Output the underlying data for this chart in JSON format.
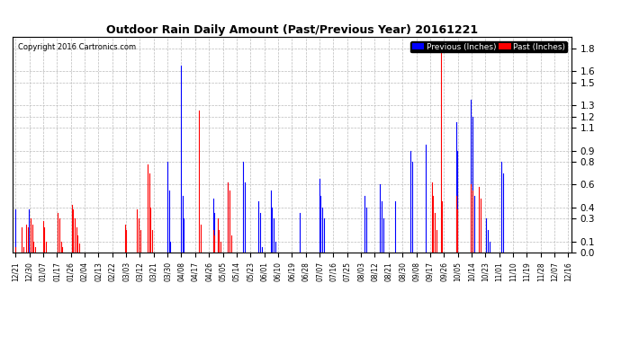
{
  "title": "Outdoor Rain Daily Amount (Past/Previous Year) 20161221",
  "copyright": "Copyright 2016 Cartronics.com",
  "legend_prev": "Previous (Inches)",
  "legend_past": "Past (Inches)",
  "prev_color": "#0000FF",
  "past_color": "#FF0000",
  "background_color": "#FFFFFF",
  "grid_color": "#BBBBBB",
  "yticks": [
    0.0,
    0.1,
    0.3,
    0.4,
    0.6,
    0.8,
    0.9,
    1.1,
    1.2,
    1.3,
    1.5,
    1.6,
    1.8
  ],
  "ylim": [
    0.0,
    1.9
  ],
  "xtick_labels": [
    "12/21",
    "12/30",
    "01/07",
    "01/17",
    "01/26",
    "02/04",
    "02/13",
    "02/22",
    "03/03",
    "03/12",
    "03/21",
    "03/30",
    "04/08",
    "04/17",
    "04/26",
    "05/05",
    "05/14",
    "05/23",
    "06/01",
    "06/10",
    "06/19",
    "06/28",
    "07/07",
    "07/16",
    "07/25",
    "08/03",
    "08/12",
    "08/21",
    "08/30",
    "09/08",
    "09/17",
    "09/26",
    "10/05",
    "10/14",
    "10/23",
    "11/01",
    "11/10",
    "11/19",
    "11/28",
    "12/07",
    "12/16"
  ],
  "n_points": 365,
  "prev_data": [
    0.38,
    0.0,
    0.0,
    0.0,
    0.0,
    0.0,
    0.0,
    0.0,
    0.0,
    0.38,
    0.05,
    0.0,
    0.0,
    0.0,
    0.0,
    0.0,
    0.0,
    0.0,
    0.0,
    0.0,
    0.0,
    0.0,
    0.0,
    0.0,
    0.0,
    0.0,
    0.0,
    0.0,
    0.0,
    0.0,
    0.0,
    0.0,
    0.0,
    0.0,
    0.0,
    0.0,
    0.0,
    0.0,
    0.05,
    0.0,
    0.0,
    0.0,
    0.0,
    0.0,
    0.0,
    0.0,
    0.0,
    0.0,
    0.0,
    0.0,
    0.0,
    0.0,
    0.0,
    0.0,
    0.0,
    0.0,
    0.0,
    0.0,
    0.0,
    0.0,
    0.0,
    0.0,
    0.0,
    0.0,
    0.0,
    0.0,
    0.0,
    0.0,
    0.0,
    0.0,
    0.0,
    0.0,
    0.0,
    0.0,
    0.0,
    0.0,
    0.0,
    0.0,
    0.0,
    0.0,
    0.0,
    0.0,
    0.0,
    0.0,
    0.0,
    0.0,
    0.0,
    0.0,
    0.0,
    0.0,
    0.0,
    0.0,
    0.0,
    0.0,
    0.0,
    0.0,
    0.0,
    0.0,
    0.0,
    0.0,
    0.8,
    0.55,
    0.1,
    0.0,
    0.0,
    0.0,
    0.0,
    0.0,
    0.0,
    1.65,
    0.5,
    0.3,
    0.0,
    0.0,
    0.0,
    0.0,
    0.0,
    0.0,
    0.0,
    0.0,
    0.0,
    0.0,
    0.0,
    0.0,
    0.0,
    0.0,
    0.0,
    0.0,
    0.0,
    0.0,
    0.48,
    0.35,
    0.0,
    0.2,
    0.0,
    0.0,
    0.0,
    0.0,
    0.0,
    0.0,
    0.62,
    0.0,
    0.0,
    0.0,
    0.0,
    0.0,
    0.0,
    0.0,
    0.0,
    0.0,
    0.8,
    0.62,
    0.0,
    0.0,
    0.0,
    0.0,
    0.0,
    0.0,
    0.0,
    0.0,
    0.45,
    0.35,
    0.05,
    0.0,
    0.0,
    0.0,
    0.0,
    0.0,
    0.55,
    0.4,
    0.3,
    0.1,
    0.0,
    0.0,
    0.0,
    0.0,
    0.0,
    0.0,
    0.0,
    0.0,
    0.0,
    0.0,
    0.0,
    0.0,
    0.0,
    0.0,
    0.0,
    0.35,
    0.0,
    0.0,
    0.0,
    0.0,
    0.0,
    0.0,
    0.0,
    0.0,
    0.0,
    0.0,
    0.0,
    0.0,
    0.65,
    0.5,
    0.4,
    0.3,
    0.0,
    0.0,
    0.0,
    0.0,
    0.0,
    0.0,
    0.0,
    0.0,
    0.0,
    0.0,
    0.0,
    0.0,
    0.0,
    0.0,
    0.0,
    0.0,
    0.0,
    0.0,
    0.0,
    0.0,
    0.0,
    0.0,
    0.0,
    0.0,
    0.0,
    0.0,
    0.5,
    0.4,
    0.0,
    0.0,
    0.0,
    0.0,
    0.0,
    0.0,
    0.0,
    0.0,
    0.6,
    0.45,
    0.3,
    0.0,
    0.0,
    0.0,
    0.0,
    0.0,
    0.0,
    0.0,
    0.45,
    0.0,
    0.0,
    0.0,
    0.0,
    0.0,
    0.0,
    0.0,
    0.0,
    0.0,
    0.9,
    0.8,
    0.0,
    0.0,
    0.0,
    0.0,
    0.0,
    0.0,
    0.0,
    0.0,
    0.95,
    0.0,
    0.0,
    0.0,
    0.0,
    0.0,
    0.0,
    0.0,
    0.0,
    0.0,
    0.0,
    0.0,
    0.0,
    0.0,
    0.0,
    0.0,
    0.0,
    0.0,
    0.0,
    0.0,
    1.15,
    0.9,
    0.0,
    0.0,
    0.0,
    0.0,
    0.0,
    0.0,
    0.0,
    0.0,
    1.35,
    1.2,
    0.5,
    0.0,
    0.0,
    0.0,
    0.0,
    0.0,
    0.0,
    0.0,
    0.3,
    0.2,
    0.1,
    0.0,
    0.0,
    0.0,
    0.0,
    0.0,
    0.0,
    0.0,
    0.8,
    0.7,
    0.0,
    0.0,
    0.0,
    0.0,
    0.0,
    0.0,
    0.0,
    0.0,
    0.0,
    0.0,
    0.0,
    0.0,
    0.0,
    0.0,
    0.0,
    0.0,
    0.0,
    0.0,
    0.0,
    0.0,
    0.0,
    0.0,
    0.0,
    0.0,
    0.0,
    0.0,
    0.0,
    0.0,
    0.0,
    0.0,
    0.0,
    0.0,
    0.0,
    0.0,
    0.0,
    0.0,
    0.0,
    0.0,
    0.0,
    0.0,
    0.0,
    0.0,
    0.0
  ],
  "past_data": [
    0.05,
    0.0,
    0.0,
    0.0,
    0.22,
    0.05,
    0.0,
    0.25,
    0.22,
    0.0,
    0.3,
    0.25,
    0.1,
    0.05,
    0.0,
    0.0,
    0.0,
    0.0,
    0.28,
    0.22,
    0.1,
    0.0,
    0.0,
    0.0,
    0.0,
    0.0,
    0.0,
    0.0,
    0.35,
    0.3,
    0.1,
    0.05,
    0.0,
    0.0,
    0.0,
    0.0,
    0.0,
    0.42,
    0.38,
    0.3,
    0.22,
    0.15,
    0.08,
    0.0,
    0.0,
    0.0,
    0.0,
    0.0,
    0.0,
    0.0,
    0.0,
    0.0,
    0.0,
    0.0,
    0.0,
    0.0,
    0.0,
    0.0,
    0.0,
    0.0,
    0.0,
    0.0,
    0.0,
    0.0,
    0.0,
    0.0,
    0.0,
    0.0,
    0.0,
    0.0,
    0.0,
    0.0,
    0.25,
    0.2,
    0.0,
    0.0,
    0.0,
    0.0,
    0.0,
    0.0,
    0.38,
    0.3,
    0.2,
    0.0,
    0.0,
    0.0,
    0.0,
    0.78,
    0.7,
    0.4,
    0.2,
    0.0,
    0.0,
    0.0,
    0.0,
    0.0,
    0.0,
    0.0,
    0.0,
    0.0,
    0.0,
    0.0,
    0.0,
    0.0,
    0.0,
    0.0,
    0.0,
    0.0,
    0.0,
    0.0,
    0.0,
    0.0,
    0.0,
    0.0,
    0.0,
    0.0,
    0.0,
    0.0,
    0.0,
    0.0,
    0.0,
    1.25,
    0.25,
    0.0,
    0.0,
    0.0,
    0.0,
    0.0,
    0.0,
    0.0,
    0.2,
    0.15,
    0.0,
    0.3,
    0.2,
    0.1,
    0.0,
    0.0,
    0.0,
    0.0,
    0.62,
    0.55,
    0.15,
    0.0,
    0.0,
    0.0,
    0.0,
    0.0,
    0.0,
    0.0,
    0.0,
    0.0,
    0.0,
    0.0,
    0.0,
    0.0,
    0.0,
    0.0,
    0.0,
    0.0,
    0.0,
    0.0,
    0.0,
    0.0,
    0.0,
    0.0,
    0.0,
    0.0,
    0.0,
    0.0,
    0.0,
    0.0,
    0.0,
    0.0,
    0.0,
    0.0,
    0.0,
    0.0,
    0.0,
    0.0,
    0.0,
    0.0,
    0.0,
    0.0,
    0.0,
    0.0,
    0.0,
    0.0,
    0.0,
    0.0,
    0.0,
    0.0,
    0.0,
    0.0,
    0.0,
    0.0,
    0.0,
    0.0,
    0.0,
    0.0,
    0.0,
    0.0,
    0.0,
    0.0,
    0.0,
    0.0,
    0.0,
    0.0,
    0.0,
    0.0,
    0.0,
    0.0,
    0.0,
    0.0,
    0.0,
    0.0,
    0.0,
    0.0,
    0.0,
    0.0,
    0.0,
    0.0,
    0.0,
    0.0,
    0.0,
    0.0,
    0.0,
    0.0,
    0.0,
    0.0,
    0.0,
    0.0,
    0.0,
    0.0,
    0.0,
    0.0,
    0.0,
    0.0,
    0.0,
    0.0,
    0.0,
    0.0,
    0.0,
    0.0,
    0.0,
    0.0,
    0.0,
    0.0,
    0.0,
    0.0,
    0.0,
    0.0,
    0.0,
    0.0,
    0.0,
    0.0,
    0.0,
    0.0,
    0.0,
    0.0,
    0.0,
    0.0,
    0.0,
    0.0,
    0.0,
    0.0,
    0.0,
    0.0,
    0.0,
    0.0,
    0.0,
    0.0,
    0.0,
    0.0,
    0.62,
    0.5,
    0.35,
    0.2,
    0.0,
    0.0,
    1.82,
    0.45,
    0.0,
    0.0,
    0.0,
    0.0,
    0.0,
    0.0,
    0.0,
    0.0,
    0.5,
    0.38,
    0.0,
    0.0,
    0.0,
    0.0,
    0.0,
    0.0,
    0.0,
    0.0,
    0.6,
    0.55,
    0.0,
    0.0,
    0.0,
    0.58,
    0.48,
    0.0,
    0.0,
    0.0,
    0.0,
    0.0,
    0.0,
    0.0,
    0.0,
    0.0,
    0.0,
    0.0,
    0.0,
    0.0,
    0.0,
    0.0,
    0.0,
    0.0,
    0.0,
    0.0,
    0.0,
    0.0,
    0.0,
    0.0,
    0.0,
    0.0,
    0.0,
    0.0,
    0.0,
    0.0,
    0.0,
    0.0,
    0.0,
    0.0,
    0.0,
    0.0,
    0.0,
    0.0,
    0.0,
    0.0,
    0.0,
    0.0,
    0.0,
    0.0,
    0.0,
    0.0,
    0.0,
    0.0,
    0.0,
    0.0,
    0.0,
    0.0,
    0.0,
    0.0,
    0.0,
    0.0,
    0.0,
    0.0,
    0.0
  ]
}
